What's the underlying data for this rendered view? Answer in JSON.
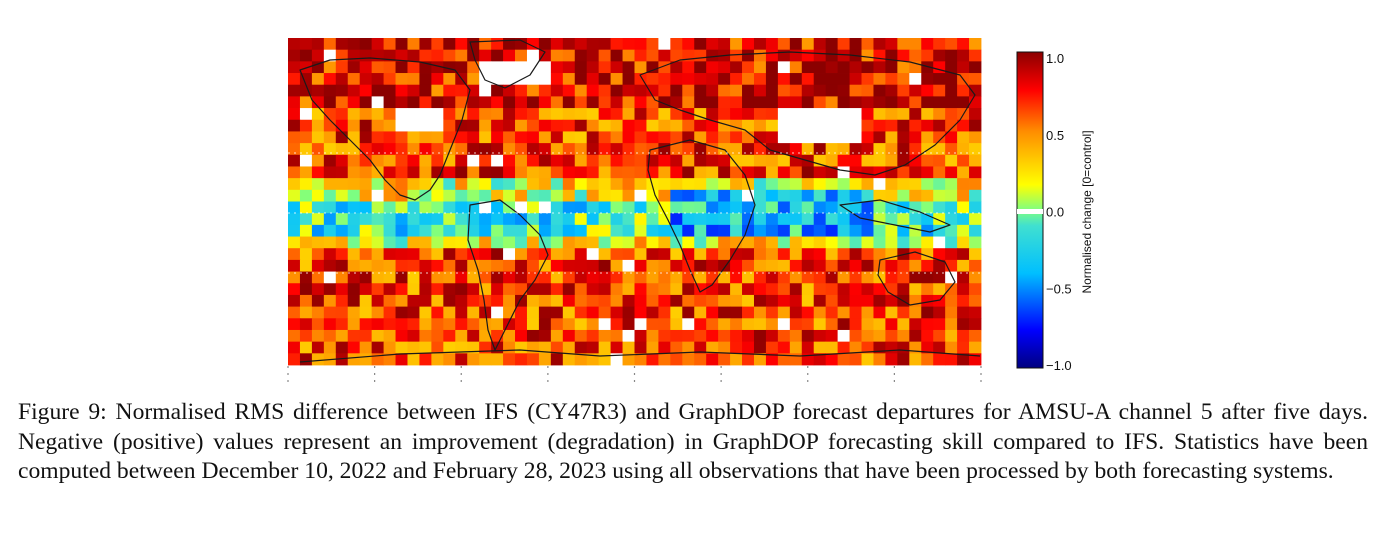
{
  "figure": {
    "colorbar": {
      "title": "Normalised change [0=control]",
      "ticks": [
        {
          "value": 1.0,
          "label": "1.0"
        },
        {
          "value": 0.5,
          "label": "0.5"
        },
        {
          "value": 0.0,
          "label": "0.0"
        },
        {
          "value": -0.5,
          "label": "−0.5"
        },
        {
          "value": -1.0,
          "label": "−1.0"
        }
      ],
      "range": [
        -1.0,
        1.0
      ],
      "colors": [
        "#000080",
        "#0000ff",
        "#00bfff",
        "#40e0d0",
        "#ffff00",
        "#ff8c00",
        "#ff0000",
        "#8b0000"
      ]
    },
    "map": {
      "type": "gridded global map",
      "projection": "equirectangular",
      "continent_outlines": true,
      "missing_color": "#ffffff"
    }
  },
  "caption": {
    "label": "Figure 9:",
    "text": "Normalised RMS difference between IFS (CY47R3) and GraphDOP forecast departures for AMSU-A channel 5 after five days. Negative (positive) values represent an improvement (degradation) in GraphDOP forecasting skill compared to IFS. Statistics have been computed between December 10, 2022 and February 28, 2023 using all observations that have been processed by both forecasting systems."
  }
}
